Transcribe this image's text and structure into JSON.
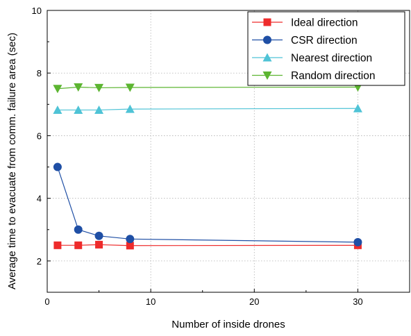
{
  "chart_data": {
    "type": "line",
    "title": "",
    "xlabel": "Number of inside drones",
    "ylabel": "Average time to evacuate from comm. failure area (sec)",
    "xlim": [
      0,
      35
    ],
    "ylim": [
      1,
      10
    ],
    "xticks": [
      0,
      10,
      20,
      30
    ],
    "yticks": [
      2,
      4,
      6,
      8,
      10
    ],
    "grid": true,
    "legend_position": "top-right",
    "series": [
      {
        "name": "Ideal direction",
        "color": "#ee2b2b",
        "marker": "square",
        "x": [
          1,
          3,
          5,
          8,
          30
        ],
        "y": [
          2.5,
          2.5,
          2.52,
          2.49,
          2.5
        ]
      },
      {
        "name": "CSR direction",
        "color": "#1f4fa5",
        "marker": "circle",
        "x": [
          1,
          3,
          5,
          8,
          30
        ],
        "y": [
          5.0,
          3.0,
          2.8,
          2.7,
          2.6
        ]
      },
      {
        "name": "Nearest direction",
        "color": "#4fc3d6",
        "marker": "triangle-up",
        "x": [
          1,
          3,
          5,
          8,
          30
        ],
        "y": [
          6.82,
          6.82,
          6.82,
          6.85,
          6.87
        ]
      },
      {
        "name": "Random direction",
        "color": "#5cb531",
        "marker": "triangle-down",
        "x": [
          1,
          3,
          5,
          8,
          30
        ],
        "y": [
          7.5,
          7.55,
          7.53,
          7.54,
          7.55
        ]
      }
    ]
  }
}
